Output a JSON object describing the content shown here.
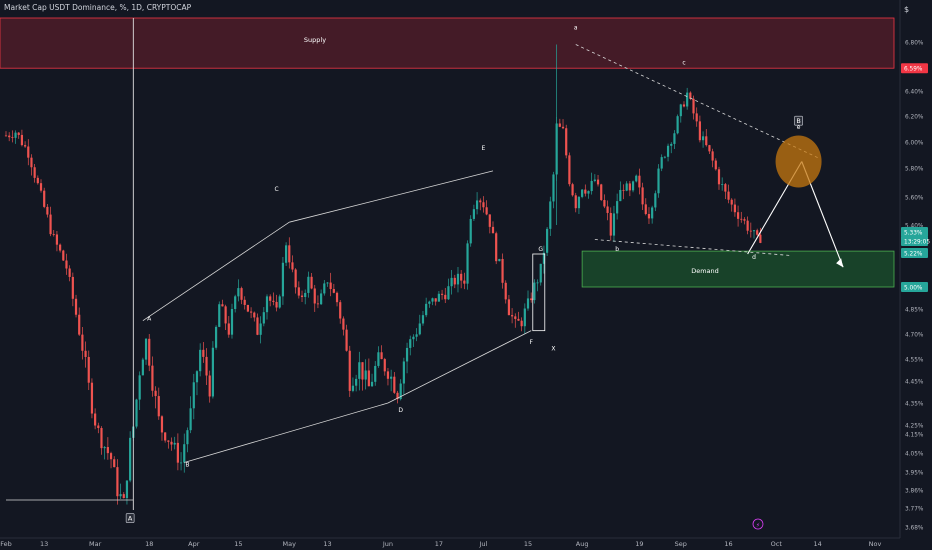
{
  "header": {
    "title": "Market Cap USDT Dominance, %, 1D, CRYPTOCAP"
  },
  "currency": "$",
  "colors": {
    "background": "#131722",
    "up": "#26a69a",
    "down": "#ef5350",
    "supply_fill": "#4a1c28",
    "supply_border": "#f23645",
    "demand_fill": "#1a4a2a",
    "demand_border": "#4caf50",
    "target_circle": "#c7780f",
    "lines": "#d9d9d9"
  },
  "chart_data": {
    "type": "candlestick",
    "ylim": [
      3.6,
      7.02
    ],
    "y_axis_ticks": [
      "6.80%",
      "6.60%",
      "6.40%",
      "6.20%",
      "6.00%",
      "5.80%",
      "5.60%",
      "5.40%",
      "5.20%",
      "5.00%",
      "4.85%",
      "4.70%",
      "4.55%",
      "4.45%",
      "4.35%",
      "4.25%",
      "4.15%",
      "4.05%",
      "3.95%",
      "3.86%",
      "3.77%",
      "3.68%"
    ],
    "y_axis_tick_values": [
      6.8,
      6.6,
      6.4,
      6.2,
      6.0,
      5.8,
      5.6,
      5.4,
      5.2,
      5.0,
      4.85,
      4.7,
      4.55,
      4.45,
      4.35,
      4.25,
      4.15,
      4.05,
      3.95,
      3.86,
      3.77,
      3.68
    ],
    "x_axis_ticks": [
      {
        "label": "Feb",
        "day": 0
      },
      {
        "label": "13",
        "day": 12
      },
      {
        "label": "Mar",
        "day": 28
      },
      {
        "label": "18",
        "day": 45
      },
      {
        "label": "Apr",
        "day": 59
      },
      {
        "label": "15",
        "day": 73
      },
      {
        "label": "May",
        "day": 89
      },
      {
        "label": "13",
        "day": 101
      },
      {
        "label": "Jun",
        "day": 120
      },
      {
        "label": "17",
        "day": 136
      },
      {
        "label": "Jul",
        "day": 150
      },
      {
        "label": "15",
        "day": 164
      },
      {
        "label": "Aug",
        "day": 181
      },
      {
        "label": "19",
        "day": 199
      },
      {
        "label": "Sep",
        "day": 212
      },
      {
        "label": "16",
        "day": 227
      },
      {
        "label": "Oct",
        "day": 242
      },
      {
        "label": "14",
        "day": 255
      },
      {
        "label": "Nov",
        "day": 273
      }
    ],
    "price_labels": [
      {
        "text": "6.59%",
        "value": 6.59,
        "color": "#f23645"
      },
      {
        "text": "5.33%",
        "value": 5.33,
        "color": "#26a69a"
      },
      {
        "text": "13:29:05",
        "value": 5.27,
        "color": "#26a69a"
      },
      {
        "text": "5.22%",
        "value": 5.22,
        "color": "#26a69a"
      },
      {
        "text": "5.00%",
        "value": 5.0,
        "color": "#26a69a"
      }
    ],
    "zones": [
      {
        "name": "Supply",
        "from": 6.59,
        "to": 7.02
      },
      {
        "name": "Demand",
        "from": 5.0,
        "to": 5.22
      }
    ],
    "ohlc_anchors": [
      [
        0,
        6.05
      ],
      [
        3,
        6.08
      ],
      [
        7,
        5.92
      ],
      [
        11,
        5.6
      ],
      [
        15,
        5.3
      ],
      [
        19,
        5.12
      ],
      [
        23,
        4.72
      ],
      [
        26,
        4.42
      ],
      [
        30,
        4.12
      ],
      [
        33,
        4.02
      ],
      [
        35,
        3.86
      ],
      [
        37,
        3.79
      ],
      [
        39,
        4.1
      ],
      [
        42,
        4.5
      ],
      [
        44,
        4.66
      ],
      [
        46,
        4.45
      ],
      [
        49,
        4.18
      ],
      [
        52,
        4.1
      ],
      [
        55,
        4.0
      ],
      [
        58,
        4.3
      ],
      [
        61,
        4.6
      ],
      [
        64,
        4.42
      ],
      [
        67,
        4.88
      ],
      [
        70,
        4.72
      ],
      [
        73,
        5.0
      ],
      [
        76,
        4.85
      ],
      [
        79,
        4.72
      ],
      [
        82,
        4.95
      ],
      [
        85,
        4.82
      ],
      [
        88,
        5.28
      ],
      [
        90,
        5.08
      ],
      [
        92,
        4.9
      ],
      [
        95,
        5.04
      ],
      [
        98,
        4.86
      ],
      [
        101,
        5.05
      ],
      [
        104,
        4.9
      ],
      [
        106,
        4.72
      ],
      [
        108,
        4.45
      ],
      [
        111,
        4.52
      ],
      [
        114,
        4.42
      ],
      [
        117,
        4.55
      ],
      [
        120,
        4.5
      ],
      [
        123,
        4.4
      ],
      [
        126,
        4.62
      ],
      [
        129,
        4.72
      ],
      [
        132,
        4.86
      ],
      [
        135,
        4.92
      ],
      [
        138,
        4.96
      ],
      [
        141,
        5.04
      ],
      [
        144,
        5.05
      ],
      [
        146,
        5.48
      ],
      [
        148,
        5.62
      ],
      [
        150,
        5.55
      ],
      [
        152,
        5.42
      ],
      [
        154,
        5.2
      ],
      [
        156,
        5.05
      ],
      [
        158,
        4.85
      ],
      [
        160,
        4.75
      ],
      [
        162,
        4.78
      ],
      [
        164,
        4.88
      ],
      [
        166,
        5.0
      ],
      [
        168,
        5.1
      ],
      [
        170,
        5.35
      ],
      [
        172,
        5.75
      ],
      [
        173,
        6.12
      ],
      [
        175,
        6.08
      ],
      [
        177,
        5.72
      ],
      [
        179,
        5.55
      ],
      [
        181,
        5.68
      ],
      [
        183,
        5.64
      ],
      [
        185,
        5.72
      ],
      [
        187,
        5.58
      ],
      [
        189,
        5.46
      ],
      [
        190,
        5.34
      ],
      [
        192,
        5.58
      ],
      [
        194,
        5.68
      ],
      [
        196,
        5.62
      ],
      [
        198,
        5.72
      ],
      [
        200,
        5.55
      ],
      [
        202,
        5.48
      ],
      [
        204,
        5.66
      ],
      [
        206,
        5.86
      ],
      [
        208,
        5.98
      ],
      [
        210,
        6.08
      ],
      [
        212,
        6.25
      ],
      [
        214,
        6.38
      ],
      [
        216,
        6.22
      ],
      [
        218,
        6.05
      ],
      [
        220,
        5.96
      ],
      [
        222,
        5.85
      ],
      [
        224,
        5.72
      ],
      [
        226,
        5.62
      ],
      [
        228,
        5.54
      ],
      [
        230,
        5.48
      ],
      [
        232,
        5.42
      ],
      [
        234,
        5.36
      ],
      [
        236,
        5.29
      ],
      [
        237,
        5.32
      ]
    ],
    "series_range": {
      "first_day": 0,
      "last_day": 237
    },
    "wave_labels": [
      {
        "text": "a",
        "day": 179,
        "value": 6.9
      },
      {
        "text": "b",
        "day": 192,
        "value": 5.22
      },
      {
        "text": "c",
        "day": 213,
        "value": 6.62
      },
      {
        "text": "d",
        "day": 235,
        "value": 5.17
      },
      {
        "text": "e",
        "day": 249,
        "value": 6.1
      },
      {
        "text": "A",
        "day": 45,
        "value": 4.78
      },
      {
        "text": "B",
        "day": 57,
        "value": 3.98
      },
      {
        "text": "C",
        "day": 85,
        "value": 5.64
      },
      {
        "text": "D",
        "day": 124,
        "value": 4.31
      },
      {
        "text": "E",
        "day": 150,
        "value": 5.94
      },
      {
        "text": "F",
        "day": 165,
        "value": 4.64
      },
      {
        "text": "G",
        "day": 168,
        "value": 5.22
      },
      {
        "text": "X",
        "day": 172,
        "value": 4.6
      }
    ],
    "badges": [
      {
        "text": "A",
        "day": 39,
        "value": 3.72
      },
      {
        "text": "B",
        "day": 249,
        "value": 6.16
      }
    ],
    "trendlines": [
      {
        "from": [
          43,
          4.78
        ],
        "to": [
          89,
          5.42
        ],
        "style": "solid"
      },
      {
        "from": [
          89,
          5.42
        ],
        "to": [
          153,
          5.78
        ],
        "style": "solid"
      },
      {
        "from": [
          56,
          4.0
        ],
        "to": [
          120,
          4.35
        ],
        "style": "solid"
      },
      {
        "from": [
          120,
          4.35
        ],
        "to": [
          165,
          4.72
        ],
        "style": "solid"
      },
      {
        "from": [
          0,
          3.81
        ],
        "to": [
          40,
          3.81
        ],
        "style": "solid"
      },
      {
        "from": [
          179,
          6.78
        ],
        "to": [
          255,
          5.88
        ],
        "style": "dashed"
      },
      {
        "from": [
          185,
          5.3
        ],
        "to": [
          247,
          5.19
        ],
        "style": "dashed"
      },
      {
        "from": [
          233,
          5.2
        ],
        "to": [
          250,
          5.85
        ],
        "style": "projection"
      },
      {
        "from": [
          250,
          5.85
        ],
        "to": [
          263,
          5.12
        ],
        "style": "projection"
      }
    ],
    "vertical_line_day": 40,
    "ellipse": {
      "day": 249,
      "value": 5.85,
      "note": "target reversal zone"
    },
    "grid": false
  }
}
